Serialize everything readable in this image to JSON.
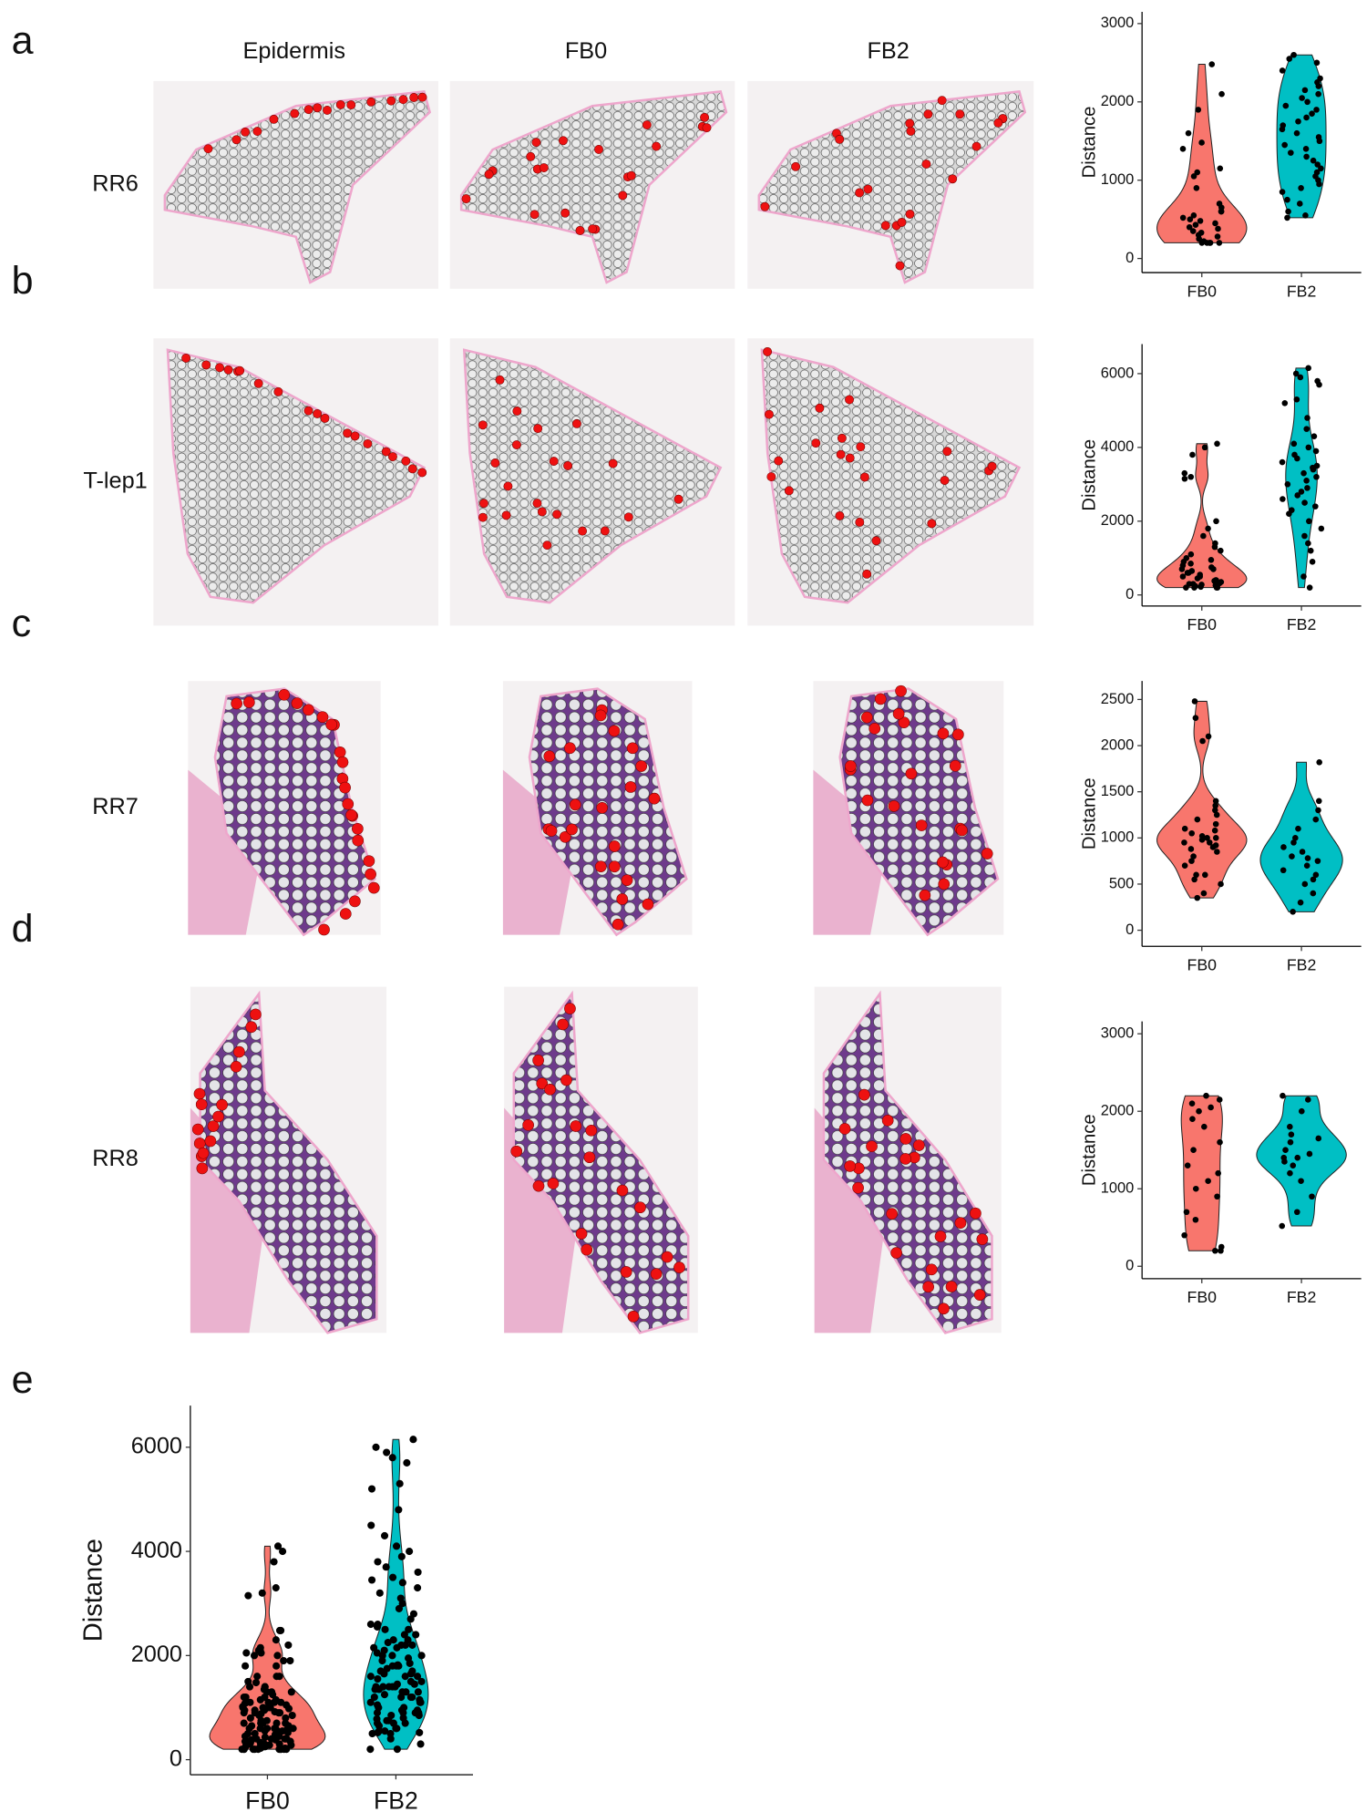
{
  "columns": [
    "Epidermis",
    "FB0",
    "FB2"
  ],
  "rows": [
    {
      "panel": "a",
      "sample": "RR6"
    },
    {
      "panel": "b",
      "sample": "T-lep1"
    },
    {
      "panel": "c",
      "sample": "RR7"
    },
    {
      "panel": "d",
      "sample": "RR8"
    }
  ],
  "chart_data": [
    {
      "type": "violin",
      "y_label": "Distance",
      "categories": [
        "FB0",
        "FB2"
      ],
      "colors": [
        "#f8766d",
        "#00bfc4"
      ],
      "values": [
        [
          2480,
          2100,
          1900,
          1600,
          1480,
          1400,
          1150,
          1100,
          1050,
          900,
          700,
          650,
          600,
          550,
          520,
          500,
          480,
          430,
          400,
          380,
          350,
          330,
          300,
          280,
          250,
          220,
          200,
          200,
          200,
          200,
          200,
          600,
          450
        ],
        [
          2600,
          2550,
          2500,
          2400,
          2300,
          2250,
          2200,
          2150,
          2100,
          2050,
          2000,
          1950,
          1900,
          1850,
          1800,
          1750,
          1700,
          1650,
          1600,
          1550,
          1500,
          1450,
          1400,
          1350,
          1300,
          1250,
          1200,
          1150,
          1100,
          1050,
          1000,
          950,
          900,
          850,
          750,
          700,
          600,
          550,
          520
        ]
      ],
      "ylim": [
        -180,
        3150
      ],
      "yticks": [
        0,
        1000,
        2000,
        3000
      ]
    },
    {
      "type": "violin",
      "y_label": "Distance",
      "categories": [
        "FB0",
        "FB2"
      ],
      "colors": [
        "#f8766d",
        "#00bfc4"
      ],
      "values": [
        [
          4100,
          4000,
          3800,
          3300,
          3200,
          3150,
          2000,
          1800,
          1600,
          1400,
          1300,
          1200,
          1100,
          1000,
          950,
          900,
          850,
          800,
          750,
          700,
          650,
          600,
          550,
          500,
          450,
          400,
          380,
          350,
          320,
          300,
          280,
          260,
          240,
          220,
          200,
          200,
          200,
          200,
          600,
          700,
          500,
          400,
          300
        ],
        [
          6150,
          6000,
          5900,
          5800,
          5700,
          5300,
          5200,
          4800,
          4500,
          4300,
          4100,
          4000,
          3900,
          3800,
          3700,
          3600,
          3500,
          3450,
          3400,
          3300,
          3200,
          3100,
          3000,
          2900,
          2800,
          2700,
          2600,
          2500,
          2400,
          2300,
          2200,
          2000,
          1800,
          1600,
          1400,
          1200,
          900,
          500,
          200
        ]
      ],
      "ylim": [
        -300,
        6800
      ],
      "yticks": [
        0,
        2000,
        4000,
        6000
      ]
    },
    {
      "type": "violin",
      "y_label": "Distance",
      "categories": [
        "FB0",
        "FB2"
      ],
      "colors": [
        "#f8766d",
        "#00bfc4"
      ],
      "values": [
        [
          2480,
          2300,
          2100,
          2050,
          1400,
          1350,
          1300,
          1250,
          1200,
          1150,
          1100,
          1080,
          1050,
          1020,
          1000,
          980,
          950,
          920,
          900,
          880,
          850,
          800,
          750,
          700,
          600,
          550,
          500,
          400,
          350,
          600,
          1000,
          950
        ],
        [
          1820,
          1400,
          1300,
          1200,
          1100,
          1000,
          950,
          900,
          850,
          800,
          780,
          750,
          700,
          650,
          600,
          550,
          500,
          300,
          200,
          400
        ]
      ],
      "ylim": [
        -175,
        2700
      ],
      "yticks": [
        0,
        500,
        1000,
        1500,
        2000,
        2500
      ]
    },
    {
      "type": "violin",
      "y_label": "Distance",
      "categories": [
        "FB0",
        "FB2"
      ],
      "colors": [
        "#f8766d",
        "#00bfc4"
      ],
      "values": [
        [
          2200,
          2150,
          2100,
          2050,
          2000,
          1900,
          1800,
          1600,
          1500,
          1300,
          1200,
          1100,
          1000,
          900,
          700,
          600,
          400,
          250,
          200,
          200
        ],
        [
          2200,
          2150,
          2000,
          1800,
          1700,
          1650,
          1600,
          1500,
          1450,
          1400,
          1400,
          1350,
          1300,
          1200,
          1100,
          900,
          700,
          520
        ]
      ],
      "ylim": [
        -160,
        3160
      ],
      "yticks": [
        0,
        1000,
        2000,
        3000
      ]
    },
    {
      "type": "violin",
      "panel": "e",
      "y_label": "Distance",
      "categories": [
        "FB0",
        "FB2"
      ],
      "colors": [
        "#f8766d",
        "#00bfc4"
      ],
      "values": [
        [
          2480,
          2100,
          1900,
          1600,
          1480,
          1400,
          1150,
          1100,
          1050,
          900,
          700,
          650,
          600,
          550,
          520,
          500,
          480,
          430,
          400,
          380,
          350,
          330,
          300,
          280,
          250,
          220,
          200,
          200,
          200,
          200,
          200,
          600,
          450,
          4100,
          4000,
          3800,
          3300,
          3200,
          3150,
          2000,
          1800,
          1600,
          1400,
          1300,
          1200,
          1100,
          1000,
          950,
          900,
          850,
          800,
          750,
          700,
          650,
          600,
          550,
          500,
          450,
          400,
          380,
          350,
          320,
          300,
          280,
          260,
          240,
          220,
          200,
          200,
          200,
          200,
          600,
          700,
          500,
          400,
          300,
          2480,
          2300,
          2100,
          2050,
          1400,
          1350,
          1300,
          1250,
          1200,
          1150,
          1100,
          1080,
          1050,
          1020,
          1000,
          980,
          950,
          920,
          900,
          880,
          850,
          800,
          750,
          700,
          600,
          550,
          500,
          400,
          350,
          600,
          1000,
          950,
          2200,
          2150,
          2100,
          2050,
          2000,
          1900,
          1800,
          1600,
          1500,
          1300,
          1200,
          1100,
          1000,
          900,
          700,
          600,
          400,
          250,
          200,
          200
        ],
        [
          2600,
          2550,
          2500,
          2400,
          2300,
          2250,
          2200,
          2150,
          2100,
          2050,
          2000,
          1950,
          1900,
          1850,
          1800,
          1750,
          1700,
          1650,
          1600,
          1550,
          1500,
          1450,
          1400,
          1350,
          1300,
          1250,
          1200,
          1150,
          1100,
          1050,
          1000,
          950,
          900,
          850,
          750,
          700,
          600,
          550,
          520,
          6150,
          6000,
          5900,
          5800,
          5700,
          5300,
          5200,
          4800,
          4500,
          4300,
          4100,
          4000,
          3900,
          3800,
          3700,
          3600,
          3500,
          3450,
          3400,
          3300,
          3200,
          3100,
          3000,
          2900,
          2800,
          2700,
          2600,
          2500,
          2400,
          2300,
          2200,
          2000,
          1800,
          1600,
          1400,
          1200,
          900,
          500,
          200,
          1820,
          1400,
          1300,
          1200,
          1100,
          1000,
          950,
          900,
          850,
          800,
          780,
          750,
          700,
          650,
          600,
          550,
          500,
          300,
          200,
          400,
          2200,
          2150,
          2000,
          1800,
          1700,
          1650,
          1600,
          1500,
          1450,
          1400,
          1400,
          1350,
          1300,
          1200,
          1100,
          900,
          700,
          520
        ]
      ],
      "ylim": [
        -290,
        6800
      ],
      "yticks": [
        0,
        2000,
        4000,
        6000
      ]
    }
  ]
}
